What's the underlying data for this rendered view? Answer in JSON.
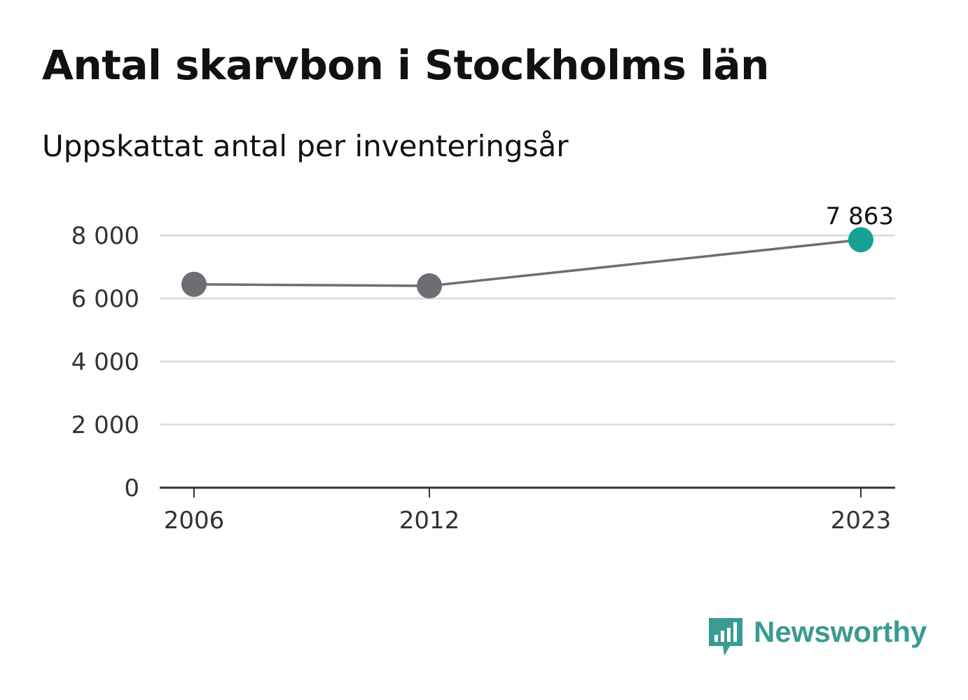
{
  "title": "Antal skarvbon i Stockholms län",
  "subtitle": "Uppskattat antal per inventeringsår",
  "brand": {
    "name": "Newsworthy",
    "color": "#3a9b93",
    "icon": "chart-speech-bubble-icon"
  },
  "colors": {
    "line": "#6e6d74",
    "point": "#6e6d74",
    "highlight": "#16a196",
    "grid": "#dddddd",
    "axis": "#333333"
  },
  "chart_data": {
    "type": "line",
    "x": [
      "2006",
      "2012",
      "2023"
    ],
    "series": [
      {
        "values": [
          6450,
          6400,
          7863
        ]
      }
    ],
    "highlight_label": "7 863",
    "yticks": [
      0,
      2000,
      4000,
      6000,
      8000
    ],
    "ytick_labels": [
      "0",
      "2 000",
      "4 000",
      "6 000",
      "8 000"
    ],
    "ylim": [
      0,
      8000
    ],
    "grid": true,
    "legend": "none"
  }
}
